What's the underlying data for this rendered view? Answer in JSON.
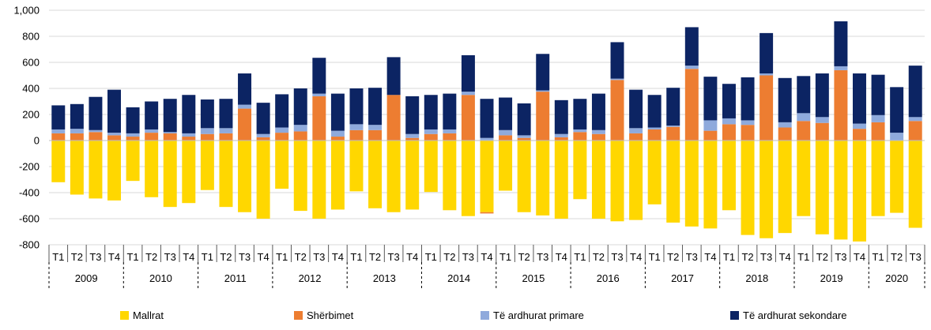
{
  "chart_data": {
    "type": "bar",
    "stacked": true,
    "title": "",
    "xlabel": "",
    "ylabel": "",
    "ylim": [
      -800,
      1000
    ],
    "yticks": [
      1000,
      800,
      600,
      400,
      200,
      0,
      -200,
      -400,
      -600,
      -800
    ],
    "ytick_labels": [
      "1,000",
      "800",
      "600",
      "400",
      "200",
      "0",
      "-200",
      "-400",
      "-600",
      "-800"
    ],
    "grid": "horizontal",
    "legend_position": "bottom",
    "years": [
      "2009",
      "2010",
      "2011",
      "2012",
      "2013",
      "2014",
      "2015",
      "2016",
      "2017",
      "2018",
      "2019",
      "2020"
    ],
    "categories": [
      "T1",
      "T2",
      "T3",
      "T4",
      "T1",
      "T2",
      "T3",
      "T4",
      "T1",
      "T2",
      "T3",
      "T4",
      "T1",
      "T2",
      "T3",
      "T4",
      "T1",
      "T2",
      "T3",
      "T4",
      "T1",
      "T2",
      "T3",
      "T4",
      "T1",
      "T2",
      "T3",
      "T4",
      "T1",
      "T2",
      "T3",
      "T4",
      "T1",
      "T2",
      "T3",
      "T4",
      "T1",
      "T2",
      "T3",
      "T4",
      "T1",
      "T2",
      "T3",
      "T4",
      "T1",
      "T2",
      "T3"
    ],
    "series": [
      {
        "name": "Mallrat",
        "color": "#ffd700",
        "values": [
          -320,
          -415,
          -445,
          -460,
          -310,
          -435,
          -510,
          -480,
          -380,
          -510,
          -550,
          -600,
          -370,
          -540,
          -600,
          -530,
          -390,
          -520,
          -550,
          -530,
          -395,
          -535,
          -580,
          -550,
          -385,
          -550,
          -575,
          -600,
          -450,
          -600,
          -620,
          -610,
          -490,
          -630,
          -660,
          -675,
          -535,
          -725,
          -750,
          -710,
          -580,
          -720,
          -760,
          -775,
          -580,
          -555,
          -670
        ]
      },
      {
        "name": "Shërbimet",
        "color": "#ed7d31",
        "values": [
          55,
          55,
          65,
          40,
          30,
          60,
          55,
          30,
          50,
          55,
          245,
          25,
          60,
          70,
          340,
          30,
          80,
          80,
          350,
          20,
          50,
          55,
          350,
          -10,
          40,
          20,
          375,
          25,
          65,
          50,
          465,
          55,
          85,
          105,
          550,
          75,
          125,
          120,
          500,
          100,
          150,
          135,
          540,
          90,
          140,
          0,
          150
        ]
      },
      {
        "name": "Të ardhurat primare",
        "color": "#8faadc",
        "values": [
          30,
          35,
          15,
          20,
          25,
          25,
          10,
          25,
          45,
          40,
          30,
          25,
          40,
          50,
          20,
          45,
          45,
          40,
          0,
          30,
          35,
          30,
          25,
          20,
          40,
          20,
          10,
          25,
          20,
          30,
          10,
          40,
          15,
          10,
          25,
          80,
          45,
          35,
          15,
          40,
          60,
          45,
          30,
          40,
          55,
          60,
          30
        ]
      },
      {
        "name": "Të ardhurat sekondare",
        "color": "#0c2463",
        "values": [
          185,
          190,
          255,
          330,
          200,
          215,
          255,
          295,
          220,
          225,
          240,
          240,
          255,
          280,
          275,
          285,
          275,
          285,
          290,
          290,
          265,
          275,
          280,
          300,
          250,
          245,
          280,
          260,
          235,
          280,
          280,
          295,
          250,
          290,
          295,
          335,
          265,
          330,
          310,
          340,
          285,
          335,
          345,
          385,
          310,
          350,
          395
        ]
      }
    ]
  }
}
